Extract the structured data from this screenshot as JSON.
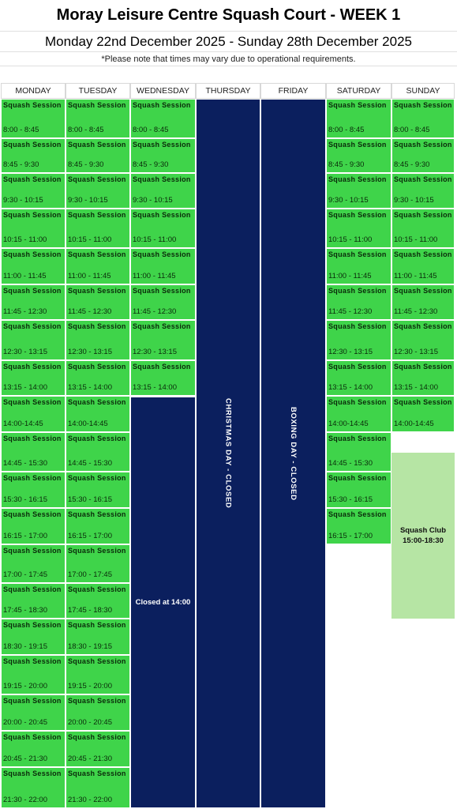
{
  "header": {
    "title": "Moray Leisure Centre Squash Court  - WEEK 1",
    "dates": "Monday 22nd December 2025 - Sunday 28th December 2025",
    "note": "*Please note that times may vary due to operational requirements."
  },
  "days": [
    "MONDAY",
    "TUESDAY",
    "WEDNESDAY",
    "THURSDAY",
    "FRIDAY",
    "SATURDAY",
    "SUNDAY"
  ],
  "session_label": "Squash Session",
  "times": [
    "8:00 - 8:45",
    "8:45 - 9:30",
    "9:30 - 10:15",
    "10:15 - 11:00",
    "11:00 - 11:45",
    "11:45 - 12:30",
    "12:30 - 13:15",
    "13:15 - 14:00",
    "14:00-14:45",
    "14:45 - 15:30",
    "15:30 - 16:15",
    "16:15 - 17:00",
    "17:00 - 17:45",
    "17:45 - 18:30",
    "18:30 - 19:15",
    "19:15 - 20:00",
    "20:00 - 20:45",
    "20:45 - 21:30",
    "21:30 - 22:00"
  ],
  "day_sessions": {
    "monday": 19,
    "tuesday": 19,
    "wednesday": 8,
    "saturday": 12,
    "sunday": 9
  },
  "closures": {
    "wednesday": "Closed at 14:00",
    "thursday": "CHRISTMAS DAY - CLOSED",
    "friday": "BOXING DAY - CLOSED"
  },
  "squash_club": {
    "line1": "Squash Club",
    "line2": "15:00-18:30"
  },
  "colors": {
    "session": "#3fd44a",
    "closed": "#0b1f5e",
    "club": "#b6e5a4"
  }
}
